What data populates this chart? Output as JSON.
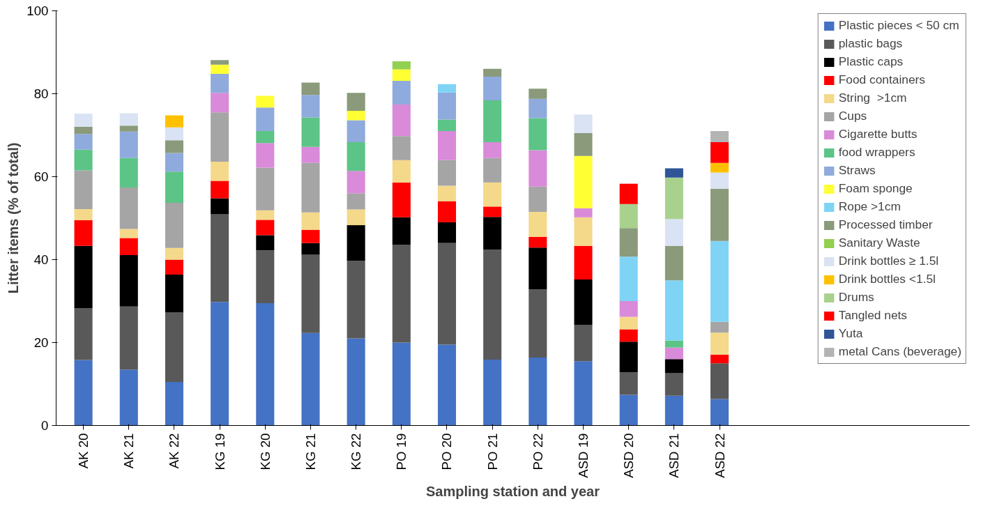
{
  "chart_data": {
    "type": "bar",
    "stacked": true,
    "xlabel": "Sampling station and year",
    "ylabel": "Litter items (% of total)",
    "categories": [
      "AK 20",
      "AK 21",
      "AK 22",
      "KG 19",
      "KG 20",
      "KG 21",
      "KG 22",
      "PO 19",
      "PO 20",
      "PO 21",
      "PO 22",
      "ASD 19",
      "ASD 20",
      "ASD 21",
      "ASD 22"
    ],
    "ylim": [
      0,
      100
    ],
    "yticks": [
      0,
      20,
      40,
      60,
      80,
      100
    ],
    "grid": false,
    "legend": "right",
    "series": [
      {
        "name": "Plastic pieces < 50 cm",
        "color": "#4472c4",
        "values": [
          15.8,
          13.5,
          10.5,
          29.8,
          29.5,
          22.3,
          21,
          20,
          19.5,
          15.9,
          16.4,
          15.5,
          7.4,
          7.2,
          6.4
        ]
      },
      {
        "name": "plastic bags",
        "color": "#595959",
        "values": [
          12.5,
          15.2,
          16.8,
          21.2,
          12.7,
          18.9,
          18.7,
          23.6,
          24.5,
          26.5,
          16.4,
          8.8,
          5.4,
          5.4,
          8.6
        ]
      },
      {
        "name": "Plastic caps",
        "color": "#000000",
        "values": [
          15,
          12.4,
          9.1,
          3.8,
          3.7,
          2.8,
          8.6,
          6.6,
          5,
          7.9,
          10.1,
          10.9,
          7.4,
          3.4,
          null
        ]
      },
      {
        "name": "Food containers",
        "color": "#ff0000",
        "values": [
          6.2,
          4.1,
          3.6,
          4.2,
          3.7,
          3.2,
          null,
          8.4,
          5.1,
          2.5,
          2.6,
          8.1,
          3,
          null,
          2.1
        ]
      },
      {
        "name": "String  >1cm",
        "color": "#f4d98a",
        "values": [
          2.7,
          2.2,
          2.8,
          4.6,
          2.3,
          4.2,
          3.8,
          5.4,
          3.7,
          5.8,
          6,
          6.9,
          3,
          null,
          5.3
        ]
      },
      {
        "name": "Cups",
        "color": "#a5a5a5",
        "values": [
          9.3,
          10,
          10.9,
          11.9,
          10.3,
          11.9,
          3.9,
          5.8,
          6.2,
          5.9,
          6.1,
          null,
          null,
          null,
          2.6
        ]
      },
      {
        "name": "Cigarette butts",
        "color": "#d98ad9",
        "values": [
          null,
          null,
          null,
          4.7,
          5.9,
          3.9,
          5.4,
          7.6,
          7,
          3.8,
          8.8,
          2.2,
          3.8,
          2.8,
          null
        ]
      },
      {
        "name": "food wrappers",
        "color": "#5cc486",
        "values": [
          5,
          7.1,
          7.5,
          null,
          2.9,
          7.1,
          6.9,
          null,
          2.8,
          10.1,
          7.7,
          null,
          null,
          1.7,
          null
        ]
      },
      {
        "name": "Straws",
        "color": "#8faadc",
        "values": [
          3.8,
          6.4,
          4.5,
          4.6,
          5.7,
          5.4,
          5.3,
          5.7,
          6.5,
          5.7,
          4.7,
          null,
          null,
          null,
          null
        ]
      },
      {
        "name": "Foam sponge",
        "color": "#ffff33",
        "values": [
          null,
          null,
          null,
          2.2,
          2.8,
          null,
          2.3,
          2.8,
          null,
          null,
          null,
          12.6,
          null,
          null,
          null
        ]
      },
      {
        "name": "Rope >1cm",
        "color": "#7fd4f5",
        "values": [
          null,
          null,
          null,
          null,
          null,
          null,
          null,
          null,
          2,
          null,
          null,
          null,
          10.7,
          14.5,
          19.5
        ]
      },
      {
        "name": "Processed timber",
        "color": "#8a9a7a",
        "values": [
          1.7,
          1.4,
          3.1,
          1.1,
          null,
          3,
          4.3,
          null,
          null,
          1.9,
          2.4,
          5.5,
          6.9,
          8.3,
          12.6
        ]
      },
      {
        "name": "Sanitary Waste",
        "color": "#92d050",
        "values": [
          null,
          null,
          null,
          null,
          null,
          null,
          null,
          1.9,
          null,
          null,
          null,
          null,
          null,
          null,
          null
        ]
      },
      {
        "name": "Drink bottles ≥ 1.5l",
        "color": "#dae3f3",
        "values": [
          3.2,
          3,
          3.1,
          null,
          null,
          null,
          null,
          null,
          null,
          null,
          null,
          4.5,
          null,
          6.5,
          3.9
        ]
      },
      {
        "name": "Drink bottles <1.5l",
        "color": "#ffc000",
        "values": [
          null,
          null,
          2.9,
          null,
          null,
          null,
          null,
          null,
          null,
          null,
          null,
          null,
          null,
          null,
          2.3
        ]
      },
      {
        "name": "Drums",
        "color": "#a9d18e",
        "values": [
          null,
          null,
          null,
          null,
          null,
          null,
          null,
          null,
          null,
          null,
          null,
          null,
          5.8,
          10,
          null
        ]
      },
      {
        "name": "Tangled nets",
        "color": "#ff0000",
        "values": [
          null,
          null,
          null,
          null,
          null,
          null,
          null,
          null,
          null,
          null,
          null,
          null,
          4.9,
          null,
          5
        ]
      },
      {
        "name": "Yuta",
        "color": "#2f5597",
        "values": [
          null,
          null,
          null,
          null,
          null,
          null,
          null,
          null,
          null,
          null,
          null,
          null,
          null,
          2.2,
          null
        ]
      },
      {
        "name": "metal Cans (beverage)",
        "color": "#b4b4b4",
        "values": [
          null,
          null,
          null,
          null,
          null,
          null,
          null,
          null,
          null,
          null,
          null,
          null,
          null,
          null,
          2.7
        ]
      }
    ]
  }
}
